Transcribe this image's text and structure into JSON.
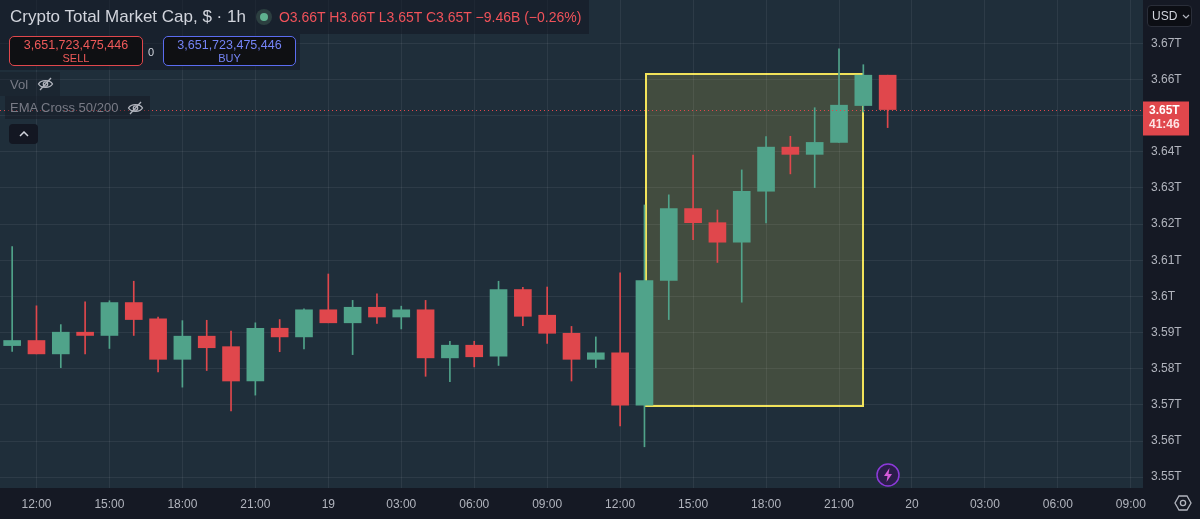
{
  "chart_data": {
    "type": "candlestick",
    "title": "Crypto Total Market Cap, $ · 1h",
    "subtitle": "O3.66T H3.66T L3.65T C3.65T −9.46B (−0.26%)",
    "annotations": [
      "3,651,723,475,446",
      "SELL",
      "0",
      "3,651,723,475,446",
      "BUY",
      "Vol",
      "EMA Cross 50/200",
      "USD",
      "41:46"
    ],
    "categories": [
      null,
      "12:00",
      null,
      null,
      "15:00",
      null,
      null,
      "18:00",
      null,
      null,
      "21:00",
      null,
      null,
      "19",
      null,
      null,
      "03:00",
      null,
      null,
      "06:00",
      null,
      null,
      "09:00",
      null,
      null,
      "12:00",
      null,
      null,
      "15:00",
      null,
      null,
      "18:00",
      null,
      null,
      "21:00",
      null,
      null,
      "20",
      null,
      null,
      "03:00",
      null,
      null,
      "06:00",
      null,
      null,
      "09:00"
    ],
    "ohlc": [
      [
        3.5864,
        3.6138,
        3.5848,
        3.5878
      ],
      [
        3.5878,
        3.5974,
        3.5841,
        3.5841
      ],
      [
        3.5841,
        3.5922,
        3.5803,
        3.5901
      ],
      [
        3.5901,
        3.5985,
        3.5841,
        3.5892
      ],
      [
        3.5892,
        3.5988,
        3.5856,
        3.5983
      ],
      [
        3.5983,
        3.6042,
        3.5892,
        3.5936
      ],
      [
        3.5938,
        3.5943,
        3.5791,
        3.5826
      ],
      [
        3.5826,
        3.5933,
        3.5749,
        3.589
      ],
      [
        3.589,
        3.5934,
        3.5795,
        3.5858
      ],
      [
        3.5861,
        3.5904,
        3.5683,
        3.5766
      ],
      [
        3.5766,
        3.5927,
        3.5727,
        3.5912
      ],
      [
        3.5912,
        3.5936,
        3.5847,
        3.5888
      ],
      [
        3.5888,
        3.5966,
        3.5855,
        3.5963
      ],
      [
        3.5963,
        3.6062,
        3.5927,
        3.5927
      ],
      [
        3.5927,
        3.5989,
        3.5839,
        3.597
      ],
      [
        3.597,
        3.6007,
        3.5925,
        3.5943
      ],
      [
        3.5943,
        3.5973,
        3.591,
        3.5963
      ],
      [
        3.5963,
        3.5989,
        3.5779,
        3.583
      ],
      [
        3.583,
        3.5876,
        3.5764,
        3.5865
      ],
      [
        3.5865,
        3.5876,
        3.5805,
        3.5833
      ],
      [
        3.5835,
        3.6042,
        3.5809,
        3.6019
      ],
      [
        3.6019,
        3.6025,
        3.5919,
        3.5945
      ],
      [
        3.5948,
        3.6026,
        3.587,
        3.5898
      ],
      [
        3.5898,
        3.5917,
        3.5766,
        3.5826
      ],
      [
        3.5826,
        3.5888,
        3.5803,
        3.5844
      ],
      [
        3.5844,
        3.6065,
        3.5642,
        3.5699
      ],
      [
        3.5699,
        3.6253,
        3.5584,
        3.6044
      ],
      [
        3.6044,
        3.6281,
        3.5936,
        3.6243
      ],
      [
        3.6243,
        3.6391,
        3.6157,
        3.6204
      ],
      [
        3.6204,
        3.6239,
        3.6094,
        3.615
      ],
      [
        3.615,
        3.635,
        3.5984,
        3.6291
      ],
      [
        3.6291,
        3.6442,
        3.6203,
        3.6413
      ],
      [
        3.6413,
        3.6443,
        3.6339,
        3.6393
      ],
      [
        3.6393,
        3.6522,
        3.6301,
        3.6426
      ],
      [
        3.6426,
        3.6685,
        3.6426,
        3.6529
      ],
      [
        3.6528,
        3.6641,
        3.651,
        3.6612
      ],
      [
        3.6612,
        3.6612,
        3.6467,
        3.6517
      ],
      null,
      null,
      null,
      null,
      null,
      null,
      null,
      null,
      null,
      null
    ],
    "colors": [
      "#50a38a",
      "#e0474c",
      "#50a38a",
      "#e0474c",
      "#50a38a",
      "#e0474c",
      "#e0474c",
      "#50a38a",
      "#e0474c",
      "#e0474c",
      "#50a38a",
      "#e0474c",
      "#50a38a",
      "#e0474c",
      "#50a38a",
      "#e0474c",
      "#50a38a",
      "#e0474c",
      "#50a38a",
      "#e0474c",
      "#50a38a",
      "#e0474c",
      "#e0474c",
      "#e0474c",
      "#50a38a",
      "#e0474c",
      "#50a38a",
      "#50a38a",
      "#e0474c",
      "#e0474c",
      "#50a38a",
      "#50a38a",
      "#e0474c",
      "#50a38a",
      "#50a38a",
      "#50a38a",
      "#e0474c",
      null,
      null,
      null,
      null,
      null,
      null,
      null,
      null,
      null,
      null
    ],
    "ylim": [
      3.547,
      3.682
    ],
    "yticks": [
      {
        "value": 3.55,
        "label": "3.55T"
      },
      {
        "value": 3.56,
        "label": "3.56T"
      },
      {
        "value": 3.57,
        "label": "3.57T"
      },
      {
        "value": 3.58,
        "label": "3.58T"
      },
      {
        "value": 3.59,
        "label": "3.59T"
      },
      {
        "value": 3.6,
        "label": "3.6T"
      },
      {
        "value": 3.61,
        "label": "3.61T"
      },
      {
        "value": 3.62,
        "label": "3.62T"
      },
      {
        "value": 3.63,
        "label": "3.63T"
      },
      {
        "value": 3.64,
        "label": "3.64T"
      },
      {
        "value": 3.65,
        "label": null
      },
      {
        "value": 3.66,
        "label": "3.66T"
      },
      {
        "value": 3.67,
        "label": "3.67T"
      }
    ],
    "ref_lines": [
      {
        "axis": "y",
        "value": 3.6517,
        "label": "3.65T",
        "color": "#e0474c",
        "line_style": "dotted"
      }
    ],
    "grid": true
  }
}
